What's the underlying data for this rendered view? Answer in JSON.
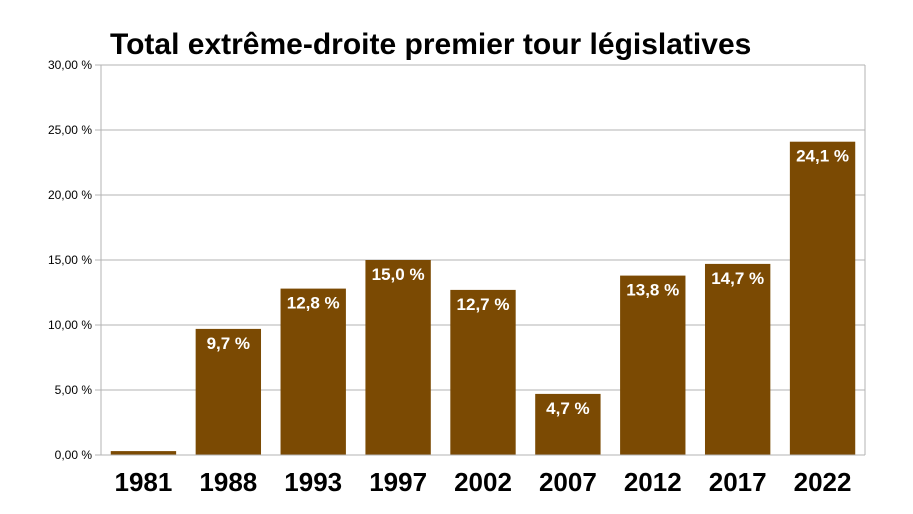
{
  "chart_data": {
    "type": "bar",
    "title": "Total extrême-droite premier tour législatives",
    "xlabel": "",
    "ylabel": "",
    "categories": [
      "1981",
      "1988",
      "1993",
      "1997",
      "2002",
      "2007",
      "2012",
      "2017",
      "2022"
    ],
    "values": [
      0.3,
      9.7,
      12.8,
      15.0,
      12.7,
      4.7,
      13.8,
      14.7,
      24.1
    ],
    "data_labels": [
      "",
      "9,7 %",
      "12,8 %",
      "15,0 %",
      "12,7 %",
      "4,7 %",
      "13,8 %",
      "14,7 %",
      "24,1 %"
    ],
    "ylim": [
      0,
      30
    ],
    "yticks": [
      0,
      5,
      10,
      15,
      20,
      25,
      30
    ],
    "ytick_labels": [
      "0,00 %",
      "5,00 %",
      "10,00 %",
      "15,00 %",
      "20,00 %",
      "25,00 %",
      "30,00 %"
    ],
    "grid": true,
    "legend": "none",
    "bar_color": "#7b4a03"
  }
}
